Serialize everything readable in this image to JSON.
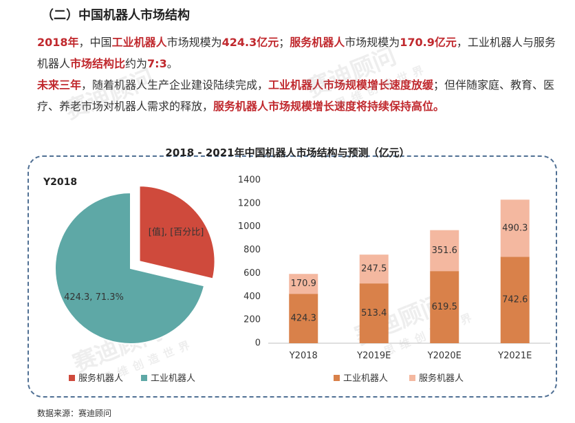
{
  "header": {
    "section_title": "（二）中国机器人市场结构"
  },
  "paragraphs": {
    "p1": [
      {
        "t": "2018年",
        "hl": true
      },
      {
        "t": "，中国",
        "hl": false
      },
      {
        "t": "工业机器人",
        "hl": true
      },
      {
        "t": "市场规模为",
        "hl": false
      },
      {
        "t": "424.3亿元",
        "hl": true
      },
      {
        "t": "；",
        "hl": false
      },
      {
        "t": "服务机器人",
        "hl": true
      },
      {
        "t": "市场规模为",
        "hl": false
      },
      {
        "t": "170.9亿元",
        "hl": true
      },
      {
        "t": "，工业机器人与服务机器人",
        "hl": false
      },
      {
        "t": "市场结构比",
        "hl": true
      },
      {
        "t": "约为",
        "hl": false
      },
      {
        "t": "7:3",
        "hl": true
      },
      {
        "t": "。",
        "hl": false
      }
    ],
    "p2": [
      {
        "t": "未来三年",
        "hl": true
      },
      {
        "t": "，随着机器人生产企业建设陆续完成，",
        "hl": false
      },
      {
        "t": "工业机器人市场规模增长速度放缓",
        "hl": true
      },
      {
        "t": "；但伴随家庭、教育、医疗、养老市场对机器人需求的释放，",
        "hl": false
      },
      {
        "t": "服务机器人市场规模增长速度将持续保持高位。",
        "hl": true
      }
    ]
  },
  "watermark": {
    "brand": "赛迪顾问",
    "slogan": "思维创造世界"
  },
  "colors": {
    "highlight": "#c0282d",
    "service_pie": "#cf4a3c",
    "industrial_pie": "#5ea8a6",
    "industrial_bar": "#d9814a",
    "service_bar": "#f4b8a0",
    "frame": "#4f6f93"
  },
  "chart_data": [
    {
      "type": "pie",
      "title": "2018 - 2021年中国机器人市场结构与预测（亿元）",
      "panel_label": "Y2018",
      "slices": [
        {
          "name": "服务机器人",
          "value": 170.9,
          "label": "[值], [百分比]",
          "exploded": true
        },
        {
          "name": "工业机器人",
          "value": 424.3,
          "label": "424.3, 71.3%"
        }
      ],
      "legend": [
        "服务机器人",
        "工业机器人"
      ],
      "legend_position": "bottom"
    },
    {
      "type": "bar",
      "stacked": true,
      "categories": [
        "Y2018",
        "Y2019E",
        "Y2020E",
        "Y2021E"
      ],
      "series": [
        {
          "name": "工业机器人",
          "values": [
            424.3,
            513.4,
            619.5,
            742.6
          ]
        },
        {
          "name": "服务机器人",
          "values": [
            170.9,
            247.5,
            351.6,
            490.3
          ]
        }
      ],
      "ylim": [
        0,
        1400
      ],
      "yticks": [
        0,
        200,
        400,
        600,
        800,
        1000,
        1200,
        1400
      ],
      "grid": false,
      "legend_position": "bottom"
    }
  ],
  "footer": {
    "source": "数据来源：赛迪顾问"
  }
}
